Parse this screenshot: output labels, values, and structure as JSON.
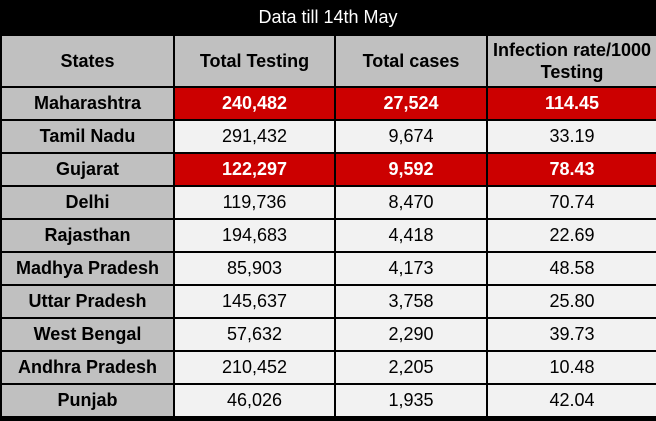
{
  "title": "Data till 14th May",
  "chart_data": {
    "type": "table",
    "title": "Data till 14th May",
    "columns": [
      "States",
      "Total Testing",
      "Total cases",
      "Infection rate/1000 Testing"
    ],
    "rows": [
      {
        "state": "Maharashtra",
        "testing": "240,482",
        "cases": "27,524",
        "rate": "114.45",
        "highlight": true
      },
      {
        "state": "Tamil Nadu",
        "testing": "291,432",
        "cases": "9,674",
        "rate": "33.19",
        "highlight": false
      },
      {
        "state": "Gujarat",
        "testing": "122,297",
        "cases": "9,592",
        "rate": "78.43",
        "highlight": true
      },
      {
        "state": "Delhi",
        "testing": "119,736",
        "cases": "8,470",
        "rate": "70.74",
        "highlight": false
      },
      {
        "state": "Rajasthan",
        "testing": "194,683",
        "cases": "4,418",
        "rate": "22.69",
        "highlight": false
      },
      {
        "state": "Madhya Pradesh",
        "testing": "85,903",
        "cases": "4,173",
        "rate": "48.58",
        "highlight": false
      },
      {
        "state": "Uttar Pradesh",
        "testing": "145,637",
        "cases": "3,758",
        "rate": "25.80",
        "highlight": false
      },
      {
        "state": "West Bengal",
        "testing": "57,632",
        "cases": "2,290",
        "rate": "39.73",
        "highlight": false
      },
      {
        "state": "Andhra Pradesh",
        "testing": "210,452",
        "cases": "2,205",
        "rate": "10.48",
        "highlight": false
      },
      {
        "state": "Punjab",
        "testing": "46,026",
        "cases": "1,935",
        "rate": "42.04",
        "highlight": false
      }
    ]
  },
  "colors": {
    "header_bg": "#c0c0c0",
    "highlight_bg": "#cc0000",
    "cell_bg": "#f2f2f2",
    "border": "#000000"
  }
}
